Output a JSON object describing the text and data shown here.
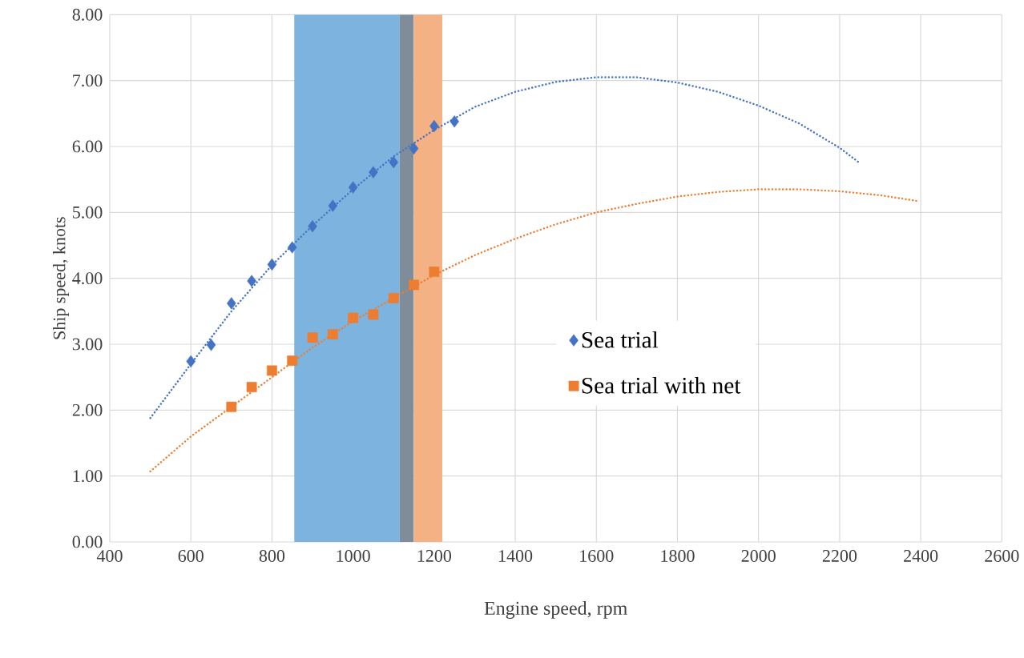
{
  "chart_data": {
    "type": "scatter",
    "xlabel": "Engine speed, rpm",
    "ylabel": "Ship speed, knots",
    "xlim": [
      400,
      2600
    ],
    "xticks": [
      400,
      600,
      800,
      1000,
      1200,
      1400,
      1600,
      1800,
      2000,
      2200,
      2400,
      2600
    ],
    "ylim": [
      0,
      8
    ],
    "yticks": [
      {
        "value": 0,
        "label": "0.00"
      },
      {
        "value": 1,
        "label": "1.00"
      },
      {
        "value": 2,
        "label": "2.00"
      },
      {
        "value": 3,
        "label": "3.00"
      },
      {
        "value": 4,
        "label": "4.00"
      },
      {
        "value": 5,
        "label": "5.00"
      },
      {
        "value": 6,
        "label": "6.00"
      },
      {
        "value": 7,
        "label": "7.00"
      },
      {
        "value": 8,
        "label": "8.00"
      }
    ],
    "grid": true,
    "legend": "right",
    "bands": [
      {
        "axis": "x",
        "from": 855,
        "to": 1115,
        "color": "#7db4df"
      },
      {
        "axis": "x",
        "from": 1115,
        "to": 1150,
        "color": "#7f8c99"
      },
      {
        "axis": "x",
        "from": 1150,
        "to": 1220,
        "color": "#f4b183"
      }
    ],
    "series": [
      {
        "type": "line",
        "color": "#4472c4",
        "line_style": "dotted",
        "marker": "none",
        "x": [
          500,
          600,
          700,
          800,
          900,
          1000,
          1100,
          1200,
          1300,
          1400,
          1500,
          1600,
          1700,
          1800,
          1900,
          2000,
          2100,
          2200,
          2245
        ],
        "values": [
          1.88,
          2.7,
          3.5,
          4.2,
          4.8,
          5.35,
          5.85,
          6.25,
          6.6,
          6.83,
          6.98,
          7.05,
          7.05,
          6.97,
          6.83,
          6.62,
          6.35,
          5.98,
          5.77
        ]
      },
      {
        "type": "line",
        "color": "#ed7d31",
        "line_style": "dotted",
        "marker": "none",
        "x": [
          500,
          600,
          700,
          800,
          900,
          1000,
          1100,
          1200,
          1300,
          1400,
          1500,
          1600,
          1700,
          1800,
          1900,
          2000,
          2100,
          2200,
          2300,
          2395
        ],
        "values": [
          1.07,
          1.6,
          2.05,
          2.5,
          2.95,
          3.35,
          3.7,
          4.05,
          4.35,
          4.6,
          4.82,
          5.0,
          5.13,
          5.24,
          5.31,
          5.35,
          5.35,
          5.32,
          5.26,
          5.17
        ]
      },
      {
        "name": "Sea trial",
        "color": "#4472c4",
        "marker": "diamond",
        "x": [
          600,
          650,
          700,
          750,
          800,
          850,
          900,
          950,
          1000,
          1050,
          1100,
          1150,
          1200,
          1250
        ],
        "values": [
          2.74,
          2.99,
          3.62,
          3.96,
          4.21,
          4.47,
          4.79,
          5.1,
          5.38,
          5.61,
          5.76,
          5.97,
          6.31,
          6.38
        ]
      },
      {
        "name": "Sea trial with net",
        "color": "#ed7d31",
        "marker": "square",
        "x": [
          700,
          750,
          800,
          850,
          900,
          950,
          1000,
          1050,
          1100,
          1150,
          1200
        ],
        "values": [
          2.05,
          2.35,
          2.6,
          2.75,
          3.1,
          3.15,
          3.4,
          3.45,
          3.7,
          3.9,
          4.1
        ]
      }
    ]
  }
}
